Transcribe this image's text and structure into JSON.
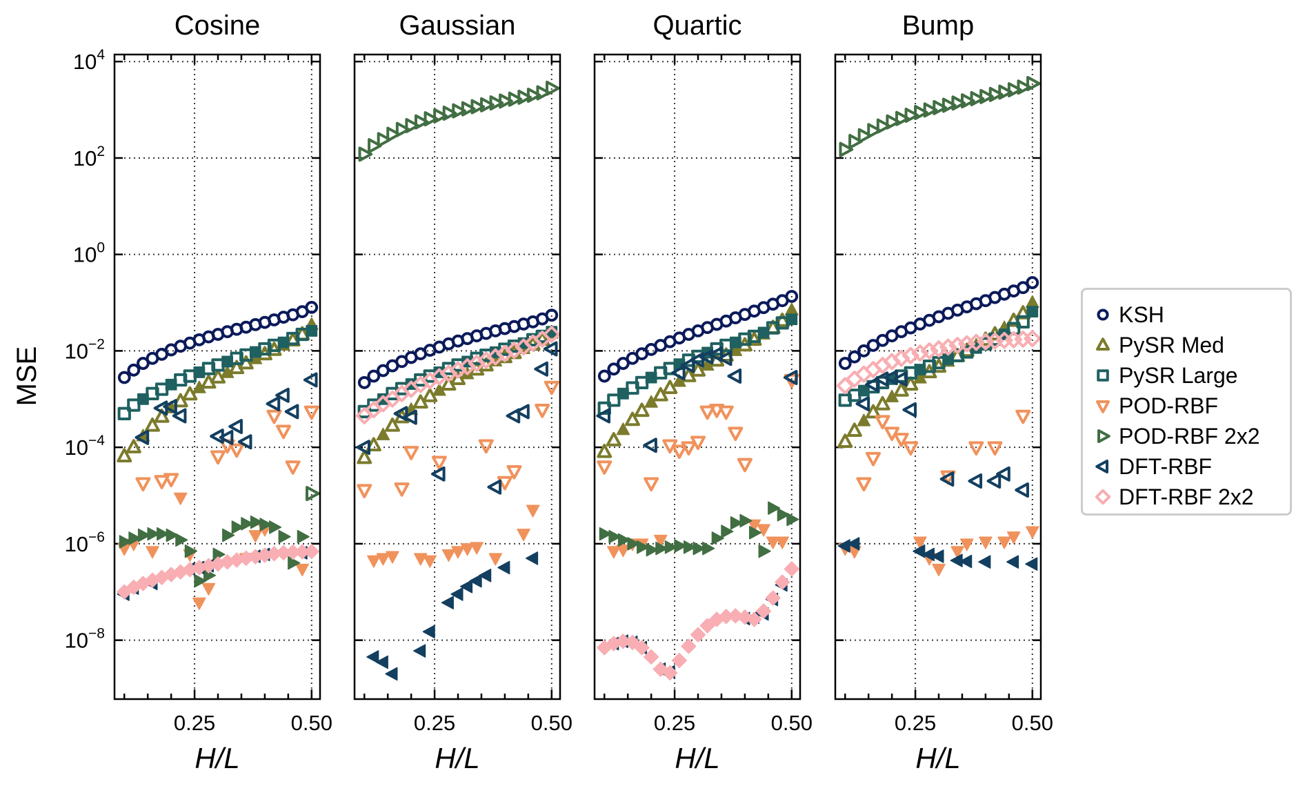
{
  "chart_data": {
    "type": "scatter",
    "ylabel": "MSE",
    "xlabel": "H/L",
    "yscale": "log",
    "ylim": [
      6e-10,
      14000.0
    ],
    "xlim": [
      0.079,
      0.518
    ],
    "yticks": [
      {
        "base": "10",
        "exp": "4"
      },
      {
        "base": "10",
        "exp": "2"
      },
      {
        "base": "10",
        "exp": "0"
      },
      {
        "base": "10",
        "exp": "−2"
      },
      {
        "base": "10",
        "exp": "−4"
      },
      {
        "base": "10",
        "exp": "−6"
      },
      {
        "base": "10",
        "exp": "−8"
      }
    ],
    "ytick_values": [
      10000.0,
      100.0,
      1,
      0.01,
      0.0001,
      1e-06,
      1e-08
    ],
    "xticks": [
      "0.25",
      "0.50"
    ],
    "xtick_values": [
      0.25,
      0.5
    ],
    "grid": true,
    "legend_position": "right",
    "x": [
      0.1,
      0.12,
      0.14,
      0.16,
      0.18,
      0.2,
      0.22,
      0.24,
      0.26,
      0.28,
      0.3,
      0.32,
      0.34,
      0.36,
      0.38,
      0.4,
      0.42,
      0.44,
      0.46,
      0.48,
      0.5
    ],
    "series_styles": [
      {
        "name": "KSH",
        "marker": "circle",
        "color": "#0b1a5a"
      },
      {
        "name": "PySR Med",
        "marker": "triangle-up",
        "color": "#7b7b2c"
      },
      {
        "name": "PySR Large",
        "marker": "square",
        "color": "#1f6060"
      },
      {
        "name": "POD-RBF",
        "marker": "triangle-down",
        "color": "#f0925c"
      },
      {
        "name": "POD-RBF 2x2",
        "marker": "triangle-right",
        "color": "#416e42"
      },
      {
        "name": "DFT-RBF",
        "marker": "triangle-left",
        "color": "#133f60"
      },
      {
        "name": "DFT-RBF 2x2",
        "marker": "diamond",
        "color": "#f8aeb2"
      }
    ],
    "panels": [
      {
        "title": "Cosine",
        "series": [
          {
            "name": "KSH",
            "values": [
              0.0028,
              0.004,
              0.0055,
              0.007,
              0.0085,
              0.0105,
              0.0125,
              0.0145,
              0.017,
              0.0195,
              0.022,
              0.025,
              0.028,
              0.031,
              0.035,
              0.039,
              0.044,
              0.05,
              0.056,
              0.065,
              0.08
            ]
          },
          {
            "name": "PySR Med",
            "values": [
              6.5e-05,
              0.0001,
              0.00017,
              0.00028,
              0.00043,
              0.00065,
              0.0009,
              0.00125,
              0.0017,
              0.0022,
              0.0028,
              0.0035,
              0.0044,
              0.0055,
              0.0068,
              0.0085,
              0.0105,
              0.013,
              0.0165,
              0.022,
              0.035
            ]
          },
          {
            "name": "PySR Large",
            "values": [
              0.0005,
              0.00075,
              0.001,
              0.0013,
              0.0016,
              0.002,
              0.0025,
              0.003,
              0.0036,
              0.0043,
              0.0051,
              0.006,
              0.007,
              0.0082,
              0.0095,
              0.011,
              0.013,
              0.015,
              0.018,
              0.022,
              0.026
            ]
          },
          {
            "name": "POD-RBF",
            "values": [
              8e-07,
              1e-06,
              1.8e-05,
              7e-07,
              2e-05,
              2.2e-05,
              9e-06,
              6e-07,
              6e-08,
              1.2e-07,
              6.5e-05,
              0.00011,
              9e-05,
              5e-07,
              1.5e-06,
              2e-06,
              0.00045,
              0.00022,
              4e-05,
              3e-07,
              0.00055
            ]
          },
          {
            "name": "POD-RBF 2x2",
            "values": [
              1.1e-06,
              1.3e-06,
              1.5e-06,
              1.6e-06,
              1.6e-06,
              1.5e-06,
              1.2e-06,
              7e-07,
              1.7e-07,
              2.2e-07,
              6e-07,
              1.5e-06,
              2.2e-06,
              2.6e-06,
              2.8e-06,
              2.5e-06,
              2.2e-06,
              1.4e-06,
              4e-07,
              1.4e-06,
              1.1e-05
            ]
          },
          {
            "name": "DFT-RBF",
            "values": [
              9e-08,
              1.2e-07,
              0.00016,
              1.5e-07,
              0.00065,
              0.0007,
              0.00045,
              3e-07,
              3.2e-07,
              3.5e-07,
              0.00017,
              0.00016,
              0.00027,
              0.00013,
              5.5e-07,
              6e-07,
              0.0008,
              0.0012,
              0.00055,
              6.5e-07,
              0.0025
            ]
          },
          {
            "name": "DFT-RBF 2x2",
            "values": [
              1e-07,
              1.25e-07,
              1.5e-07,
              1.75e-07,
              2e-07,
              2.3e-07,
              2.6e-07,
              2.9e-07,
              3.2e-07,
              3.5e-07,
              3.8e-07,
              4.2e-07,
              4.6e-07,
              5e-07,
              5.4e-07,
              5.8e-07,
              6.2e-07,
              6.5e-07,
              6.7e-07,
              6.8e-07,
              6.9e-07
            ]
          }
        ]
      },
      {
        "title": "Gaussian",
        "series": [
          {
            "name": "KSH",
            "values": [
              0.0022,
              0.003,
              0.0039,
              0.0049,
              0.006,
              0.0073,
              0.0087,
              0.0103,
              0.012,
              0.014,
              0.016,
              0.018,
              0.0205,
              0.023,
              0.026,
              0.029,
              0.032,
              0.036,
              0.04,
              0.046,
              0.055
            ]
          },
          {
            "name": "PySR Med",
            "values": [
              6e-05,
              0.00011,
              0.00018,
              0.00028,
              0.00042,
              0.0006,
              0.00085,
              0.00115,
              0.0015,
              0.002,
              0.0026,
              0.0033,
              0.0041,
              0.005,
              0.0061,
              0.0074,
              0.009,
              0.011,
              0.0135,
              0.017,
              0.023
            ]
          },
          {
            "name": "PySR Large",
            "values": [
              0.00055,
              0.00075,
              0.001,
              0.0013,
              0.00165,
              0.00205,
              0.0025,
              0.003,
              0.0036,
              0.0043,
              0.0051,
              0.006,
              0.007,
              0.0081,
              0.0094,
              0.0108,
              0.0125,
              0.0145,
              0.017,
              0.02,
              0.025
            ]
          },
          {
            "name": "POD-RBF",
            "values": [
              1.3e-05,
              4.5e-07,
              5e-07,
              5.5e-07,
              1.4e-05,
              8e-05,
              5e-07,
              4.5e-07,
              5e-05,
              6e-07,
              7e-07,
              8e-07,
              8.5e-07,
              0.00011,
              5e-07,
              1.9e-05,
              3.2e-05,
              1.6e-06,
              5e-06,
              0.0006,
              0.0018
            ]
          },
          {
            "name": "POD-RBF 2x2",
            "values": [
              120,
              180,
              240,
              310,
              390,
              470,
              560,
              650,
              750,
              850,
              950,
              1050,
              1160,
              1270,
              1390,
              1520,
              1660,
              1820,
              2000,
              2250,
              2800
            ]
          },
          {
            "name": "DFT-RBF",
            "values": [
              0.0001,
              4.5e-09,
              3.5e-09,
              2e-09,
              0.0005,
              0.00042,
              6e-09,
              1.5e-08,
              2.8e-05,
              6e-08,
              9e-08,
              1.3e-07,
              1.7e-07,
              2.2e-07,
              1.5e-05,
              3.2e-07,
              0.00045,
              0.00055,
              5e-07,
              0.0042,
              0.011
            ]
          },
          {
            "name": "DFT-RBF 2x2",
            "values": [
              0.00045,
              0.0006,
              0.0008,
              0.001,
              0.0013,
              0.0016,
              0.002,
              0.0024,
              0.0029,
              0.0034,
              0.004,
              0.0047,
              0.0055,
              0.0064,
              0.0075,
              0.0088,
              0.0103,
              0.012,
              0.0145,
              0.0175,
              0.022
            ]
          }
        ]
      },
      {
        "title": "Quartic",
        "series": [
          {
            "name": "KSH",
            "values": [
              0.003,
              0.0042,
              0.0055,
              0.007,
              0.0087,
              0.0107,
              0.013,
              0.0155,
              0.0185,
              0.022,
              0.026,
              0.0305,
              0.0355,
              0.0415,
              0.0485,
              0.057,
              0.067,
              0.079,
              0.093,
              0.11,
              0.135
            ]
          },
          {
            "name": "PySR Med",
            "values": [
              8e-05,
              0.00014,
              0.00023,
              0.00037,
              0.00057,
              0.00085,
              0.0012,
              0.0017,
              0.0023,
              0.003,
              0.0039,
              0.005,
              0.0063,
              0.008,
              0.01,
              0.013,
              0.017,
              0.022,
              0.03,
              0.042,
              0.07
            ]
          },
          {
            "name": "PySR Large",
            "values": [
              0.00065,
              0.00095,
              0.0013,
              0.0017,
              0.0022,
              0.0028,
              0.0035,
              0.0043,
              0.0053,
              0.0064,
              0.0077,
              0.0092,
              0.011,
              0.013,
              0.015,
              0.0175,
              0.02,
              0.024,
              0.03,
              0.038,
              0.045
            ]
          },
          {
            "name": "POD-RBF",
            "values": [
              4e-05,
              7e-07,
              7.5e-07,
              1e-06,
              1e-06,
              1.8e-05,
              1.2e-06,
              0.00011,
              8.5e-05,
              0.0001,
              0.00013,
              0.00055,
              0.0006,
              0.00055,
              0.0002,
              4.5e-05,
              2.5e-06,
              2e-06,
              1.1e-06,
              1.1e-06,
              0.0025
            ]
          },
          {
            "name": "POD-RBF 2x2",
            "values": [
              1.6e-06,
              1.4e-06,
              1.2e-06,
              1e-06,
              8.5e-07,
              7.5e-07,
              8e-07,
              8.5e-07,
              9e-07,
              8.5e-07,
              8e-07,
              8e-07,
              1.3e-06,
              1.8e-06,
              2.7e-06,
              3e-06,
              1.7e-06,
              7e-07,
              5.5e-06,
              4e-06,
              3.2e-06
            ]
          },
          {
            "name": "DFT-RBF",
            "values": [
              0.00045,
              8.5e-09,
              9.5e-09,
              9e-09,
              7e-09,
              0.00011,
              2.5e-09,
              2.2e-09,
              0.0035,
              0.005,
              0.0065,
              0.0075,
              0.0085,
              0.007,
              0.003,
              2.8e-08,
              3e-08,
              3.5e-08,
              7e-08,
              1.4e-07,
              0.0028
            ]
          },
          {
            "name": "DFT-RBF 2x2",
            "values": [
              7e-09,
              8.5e-09,
              9.5e-09,
              9e-09,
              7e-09,
              4.5e-09,
              2.5e-09,
              2.1e-09,
              3.8e-09,
              7.5e-09,
              1.3e-08,
              2e-08,
              2.7e-08,
              3.1e-08,
              3.2e-08,
              3e-08,
              2.7e-08,
              4e-08,
              7.5e-08,
              1.6e-07,
              3e-07
            ]
          }
        ]
      },
      {
        "title": "Bump",
        "series": [
          {
            "name": "KSH",
            "values": [
              0.0055,
              0.0075,
              0.01,
              0.013,
              0.0165,
              0.0205,
              0.025,
              0.03,
              0.036,
              0.043,
              0.051,
              0.06,
              0.07,
              0.082,
              0.095,
              0.11,
              0.128,
              0.15,
              0.175,
              0.205,
              0.26
            ]
          },
          {
            "name": "PySR Med",
            "values": [
              0.00013,
              0.00022,
              0.00035,
              0.00053,
              0.00078,
              0.0011,
              0.0015,
              0.002,
              0.0027,
              0.0036,
              0.0047,
              0.006,
              0.0078,
              0.01,
              0.013,
              0.017,
              0.022,
              0.03,
              0.042,
              0.06,
              0.1
            ]
          },
          {
            "name": "PySR Large",
            "values": [
              0.00095,
              0.0012,
              0.0015,
              0.0018,
              0.0022,
              0.0026,
              0.003,
              0.0035,
              0.0041,
              0.0048,
              0.0057,
              0.0067,
              0.008,
              0.0095,
              0.0115,
              0.014,
              0.0175,
              0.022,
              0.029,
              0.04,
              0.065
            ]
          },
          {
            "name": "POD-RBF",
            "values": [
              8e-07,
              7e-07,
              1.8e-05,
              6e-05,
              0.00035,
              0.0002,
              0.00015,
              0.0001,
              1.1e-06,
              5e-07,
              3e-07,
              2.5e-05,
              7e-07,
              1e-06,
              0.0001,
              1.1e-06,
              0.0001,
              1.1e-06,
              1.4e-06,
              0.00045,
              1.8e-06
            ]
          },
          {
            "name": "POD-RBF 2x2",
            "values": [
              150,
              220,
              290,
              370,
              460,
              560,
              660,
              770,
              880,
              990,
              1110,
              1240,
              1380,
              1530,
              1700,
              1880,
              2080,
              2320,
              2600,
              2950,
              3500
            ]
          },
          {
            "name": "DFT-RBF",
            "values": [
              9e-07,
              1e-06,
              0.0008,
              0.002,
              0.0026,
              0.0028,
              0.0026,
              0.0006,
              7e-07,
              6e-07,
              5.5e-07,
              2.2e-05,
              4.5e-07,
              4.3e-07,
              2e-05,
              4.2e-07,
              2e-05,
              2.8e-05,
              4.2e-07,
              1.3e-05,
              3.8e-07
            ]
          },
          {
            "name": "DFT-RBF 2x2",
            "values": [
              0.0019,
              0.0026,
              0.0033,
              0.0041,
              0.005,
              0.006,
              0.007,
              0.008,
              0.009,
              0.01,
              0.011,
              0.012,
              0.013,
              0.014,
              0.015,
              0.0155,
              0.016,
              0.0165,
              0.017,
              0.0175,
              0.018
            ]
          }
        ]
      }
    ]
  }
}
